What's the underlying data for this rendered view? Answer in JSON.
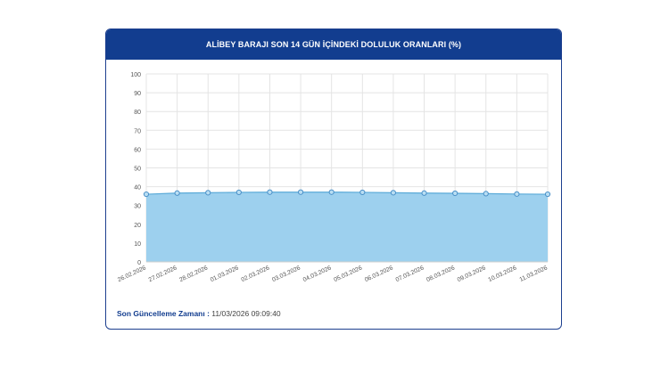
{
  "header": {
    "title": "ALİBEY BARAJI SON 14 GÜN İÇİNDEKİ DOLULUK ORANLARI (%)"
  },
  "footer": {
    "label": "Son Güncelleme Zamanı :",
    "value": "11/03/2026 09:09:40"
  },
  "colors": {
    "header_bg": "#123d8f",
    "area_fill": "#9dd0ee",
    "line": "#5aaad8",
    "marker": "#4a90c8"
  },
  "chart_data": {
    "type": "area",
    "categories": [
      "26.02.2026",
      "27.02.2026",
      "28.02.2026",
      "01.03.2026",
      "02.03.2026",
      "03.03.2026",
      "04.03.2026",
      "05.03.2026",
      "06.03.2026",
      "07.03.2026",
      "08.03.2026",
      "09.03.2026",
      "10.03.2026",
      "11.03.2026"
    ],
    "series": [
      {
        "values": [
          36.0,
          36.6,
          36.8,
          37.0,
          37.1,
          37.1,
          37.1,
          37.0,
          36.8,
          36.6,
          36.5,
          36.3,
          36.1,
          36.0
        ]
      }
    ],
    "ylim": [
      0,
      100
    ],
    "yticks": [
      0,
      10,
      20,
      30,
      40,
      50,
      60,
      70,
      80,
      90,
      100
    ],
    "grid": true,
    "legend": "none"
  }
}
